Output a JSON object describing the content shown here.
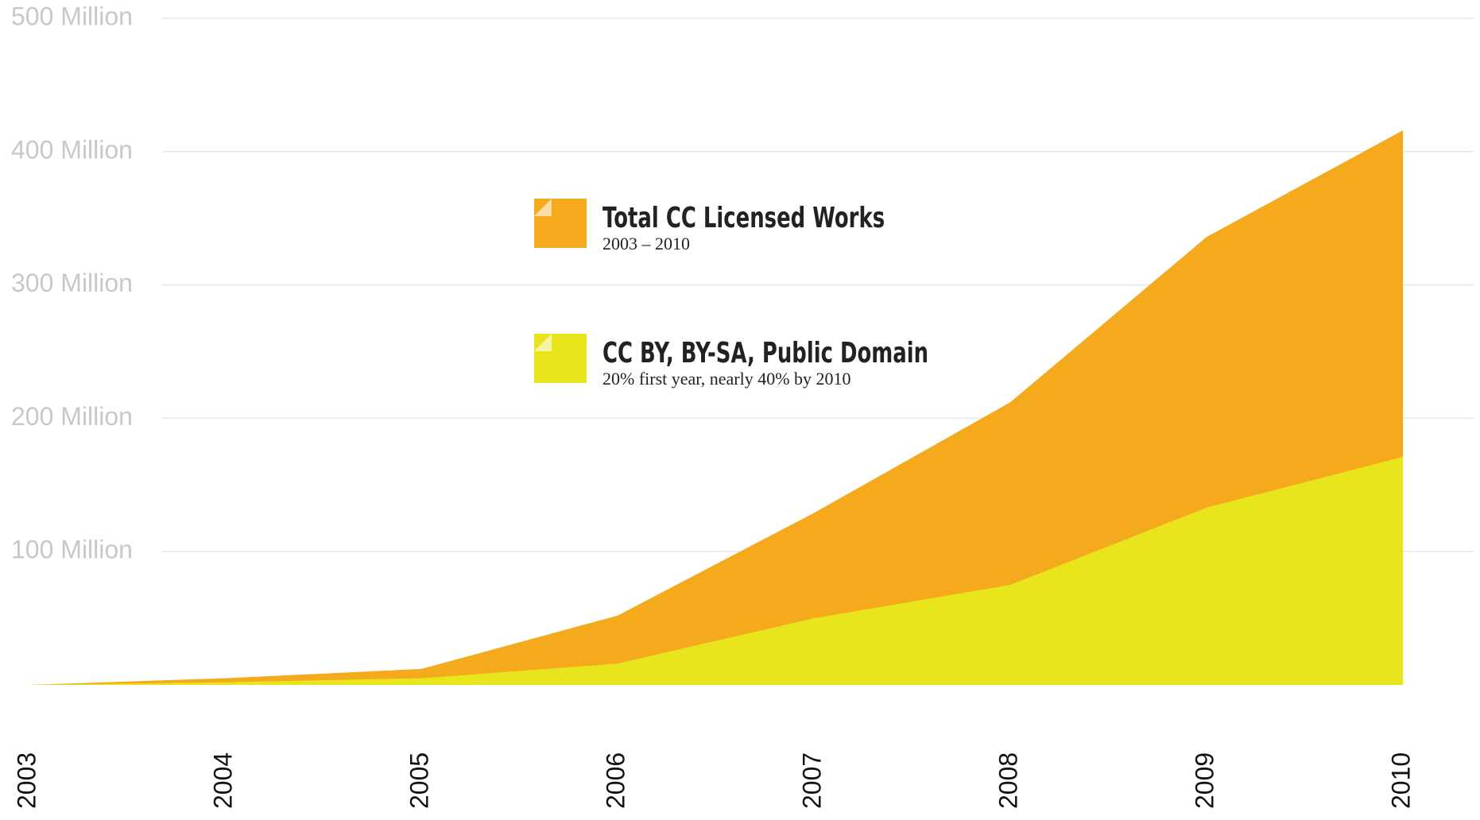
{
  "chart_data": {
    "type": "area",
    "x": [
      2003,
      2004,
      2005,
      2006,
      2007,
      2008,
      2009,
      2010
    ],
    "series": [
      {
        "name": "Total CC Licensed Works",
        "subtitle": "2003 – 2010",
        "color": "#f4aa1c",
        "values": [
          0,
          5,
          12,
          52,
          129,
          212,
          336,
          416
        ]
      },
      {
        "name": "CC BY, BY-SA, Public Domain",
        "subtitle": "20% first year, nearly 40% by 2010",
        "color": "#e9e51c",
        "values": [
          0,
          2,
          5,
          16,
          50,
          75,
          133,
          171
        ]
      }
    ],
    "xlim": [
      2003,
      2010.36
    ],
    "xticks": [
      2003,
      2004,
      2005,
      2006,
      2007,
      2008,
      2009,
      2010
    ],
    "ylim": [
      0,
      500
    ],
    "yticks": [
      {
        "value": 100,
        "label": "100 Million"
      },
      {
        "value": 200,
        "label": "200 Million"
      },
      {
        "value": 300,
        "label": "300 Million"
      },
      {
        "value": 400,
        "label": "400 Million"
      },
      {
        "value": 500,
        "label": "500 Million"
      }
    ],
    "grid": true
  }
}
